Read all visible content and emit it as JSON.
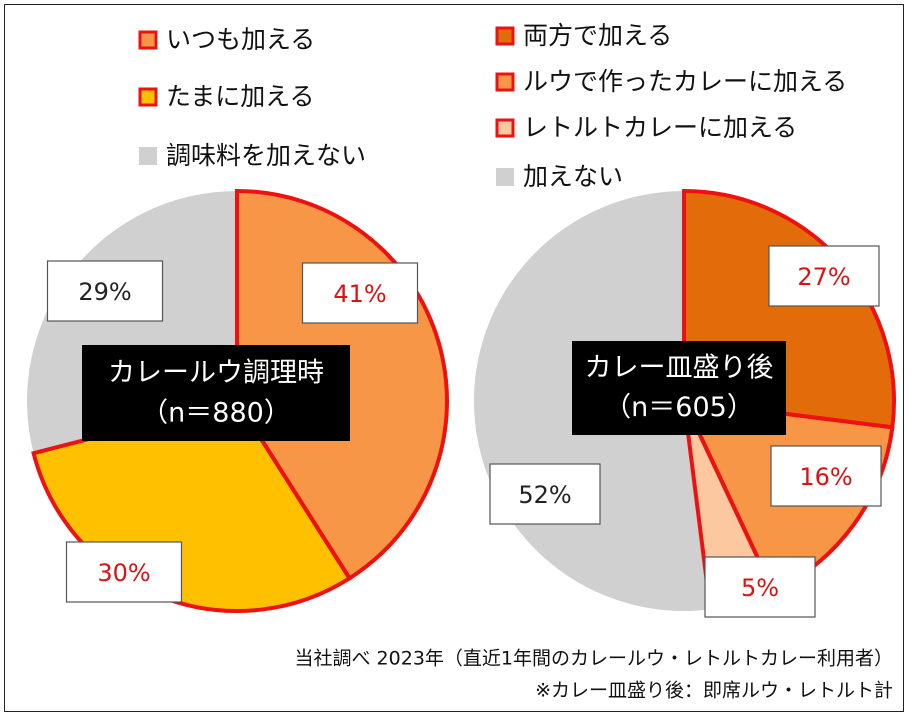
{
  "chart_data": [
    {
      "type": "pie",
      "title": "カレールウ調理時",
      "subtitle": "（n＝880）",
      "legend": [
        "いつも加える",
        "たまに加える",
        "調味料を加えない"
      ],
      "slices": [
        {
          "label": "いつも加える",
          "value": 41,
          "display": "41%",
          "color": "#f79646"
        },
        {
          "label": "たまに加える",
          "value": 30,
          "display": "30%",
          "color": "#ffc000"
        },
        {
          "label": "調味料を加えない",
          "value": 29,
          "display": "29%",
          "color": "#d0d0d0"
        }
      ]
    },
    {
      "type": "pie",
      "title": "カレー皿盛り後",
      "subtitle": "（n＝605）",
      "legend": [
        "両方で加える",
        "ルウで作ったカレーに加える",
        "レトルトカレーに加える",
        "加えない"
      ],
      "slices": [
        {
          "label": "両方で加える",
          "value": 27,
          "display": "27%",
          "color": "#e36c0a"
        },
        {
          "label": "ルウで作ったカレーに加える",
          "value": 16,
          "display": "16%",
          "color": "#f79646"
        },
        {
          "label": "レトルトカレーに加える",
          "value": 5,
          "display": "5%",
          "color": "#fbc8a0"
        },
        {
          "label": "加えない",
          "value": 52,
          "display": "52%",
          "color": "#d0d0d0"
        }
      ]
    }
  ],
  "notes": [
    "当社調べ 2023年（直近1年間のカレールウ・レトルトカレー利用者）",
    "※カレー皿盛り後：即席ルウ・レトルト計"
  ],
  "colors": {
    "highlight_outline": "#ee1111",
    "label_red": "#dd1111",
    "label_dark": "#222222",
    "center_box": "#000000"
  }
}
